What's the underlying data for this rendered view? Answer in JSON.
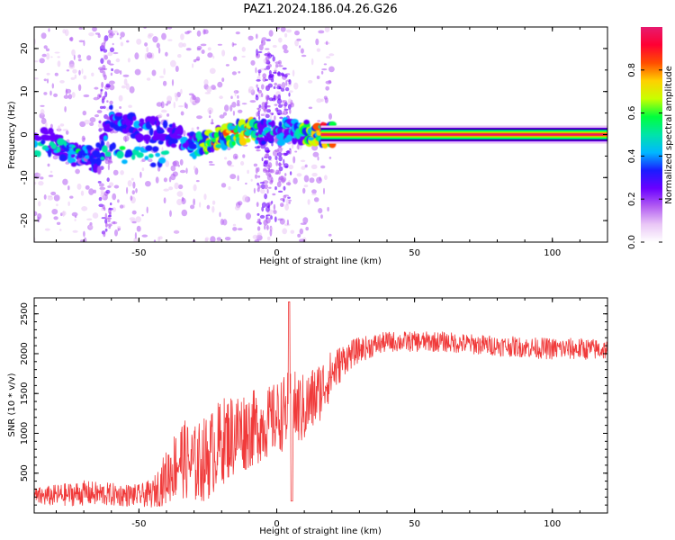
{
  "figure_title": "PAZ1.2024.186.04.26.G26",
  "colors": {
    "snr_line": "#f03a3a",
    "axis": "#000000",
    "grid": "#cccccc",
    "colormap": [
      "#ffffff",
      "#e9c6f6",
      "#b25cf2",
      "#6a00ff",
      "#1a1cff",
      "#00b8ff",
      "#00e4a8",
      "#00ff3c",
      "#c8ff00",
      "#ffd000",
      "#ff4d00",
      "#ff0033",
      "#e61a6e"
    ]
  },
  "chart_data": [
    {
      "type": "heatmap",
      "title": "",
      "xlabel": "Height of straight line (km)",
      "ylabel": "Frequency (Hz)",
      "xlim": [
        -88,
        120
      ],
      "ylim": [
        -25,
        25
      ],
      "xticks": [
        -50,
        0,
        50,
        100
      ],
      "yticks": [
        -20,
        -10,
        0,
        10,
        20
      ],
      "colorbar": {
        "label": "Normalized spectral amplitude",
        "range": [
          0.0,
          1.0
        ],
        "ticks": [
          0.0,
          0.2,
          0.4,
          0.6,
          0.8
        ]
      },
      "ridge": {
        "x": [
          -85,
          -80,
          -75,
          -70,
          -65,
          -60,
          -55,
          -50,
          -45,
          -40,
          -35,
          -30,
          -25,
          -20,
          -15,
          -10,
          -5,
          0,
          5,
          10,
          15,
          20,
          40,
          60,
          80,
          100,
          120
        ],
        "freq": [
          0.0,
          -2.0,
          -4.0,
          -5.5,
          -6.0,
          4.5,
          2.0,
          1.5,
          1.0,
          0.5,
          -1.0,
          -2.5,
          -1.5,
          -0.5,
          0.5,
          1.0,
          0.5,
          0.5,
          0.8,
          0.5,
          0.2,
          0.0,
          0.0,
          0.0,
          0.0,
          0.0,
          0.0
        ],
        "amplitude": [
          0.25,
          0.35,
          0.4,
          0.4,
          0.45,
          0.4,
          0.35,
          0.4,
          0.35,
          0.35,
          0.4,
          0.45,
          0.8,
          0.75,
          0.85,
          0.9,
          0.4,
          0.5,
          0.45,
          0.7,
          0.85,
          1.0,
          1.0,
          1.0,
          1.0,
          1.0,
          1.0
        ]
      }
    },
    {
      "type": "line",
      "title": "",
      "xlabel": "Height of straight line (km)",
      "ylabel": "SNR (10 * v/v)",
      "xlim": [
        -88,
        120
      ],
      "ylim": [
        0,
        2700
      ],
      "xticks": [
        -50,
        0,
        50,
        100
      ],
      "yticks": [
        500,
        1000,
        1500,
        2000,
        2500
      ],
      "envelope": {
        "x": [
          -88,
          -80,
          -70,
          -60,
          -50,
          -45,
          -40,
          -35,
          -30,
          -25,
          -20,
          -15,
          -10,
          -5,
          0,
          5,
          10,
          15,
          20,
          25,
          30,
          40,
          50,
          60,
          70,
          80,
          90,
          100,
          110,
          120
        ],
        "mean": [
          200,
          220,
          250,
          230,
          220,
          240,
          450,
          700,
          600,
          700,
          900,
          1000,
          1050,
          1100,
          1200,
          1300,
          1300,
          1500,
          1750,
          1950,
          2050,
          2150,
          2150,
          2150,
          2120,
          2100,
          2080,
          2060,
          2060,
          2050
        ],
        "spread": [
          120,
          140,
          160,
          150,
          140,
          180,
          350,
          500,
          500,
          550,
          550,
          550,
          500,
          450,
          450,
          500,
          450,
          400,
          300,
          200,
          160,
          130,
          130,
          130,
          130,
          130,
          130,
          140,
          140,
          130
        ]
      },
      "features": [
        {
          "x": 4.5,
          "y": 2650,
          "kind": "peak"
        },
        {
          "x": 5.5,
          "y": 150,
          "kind": "dip"
        }
      ]
    }
  ]
}
